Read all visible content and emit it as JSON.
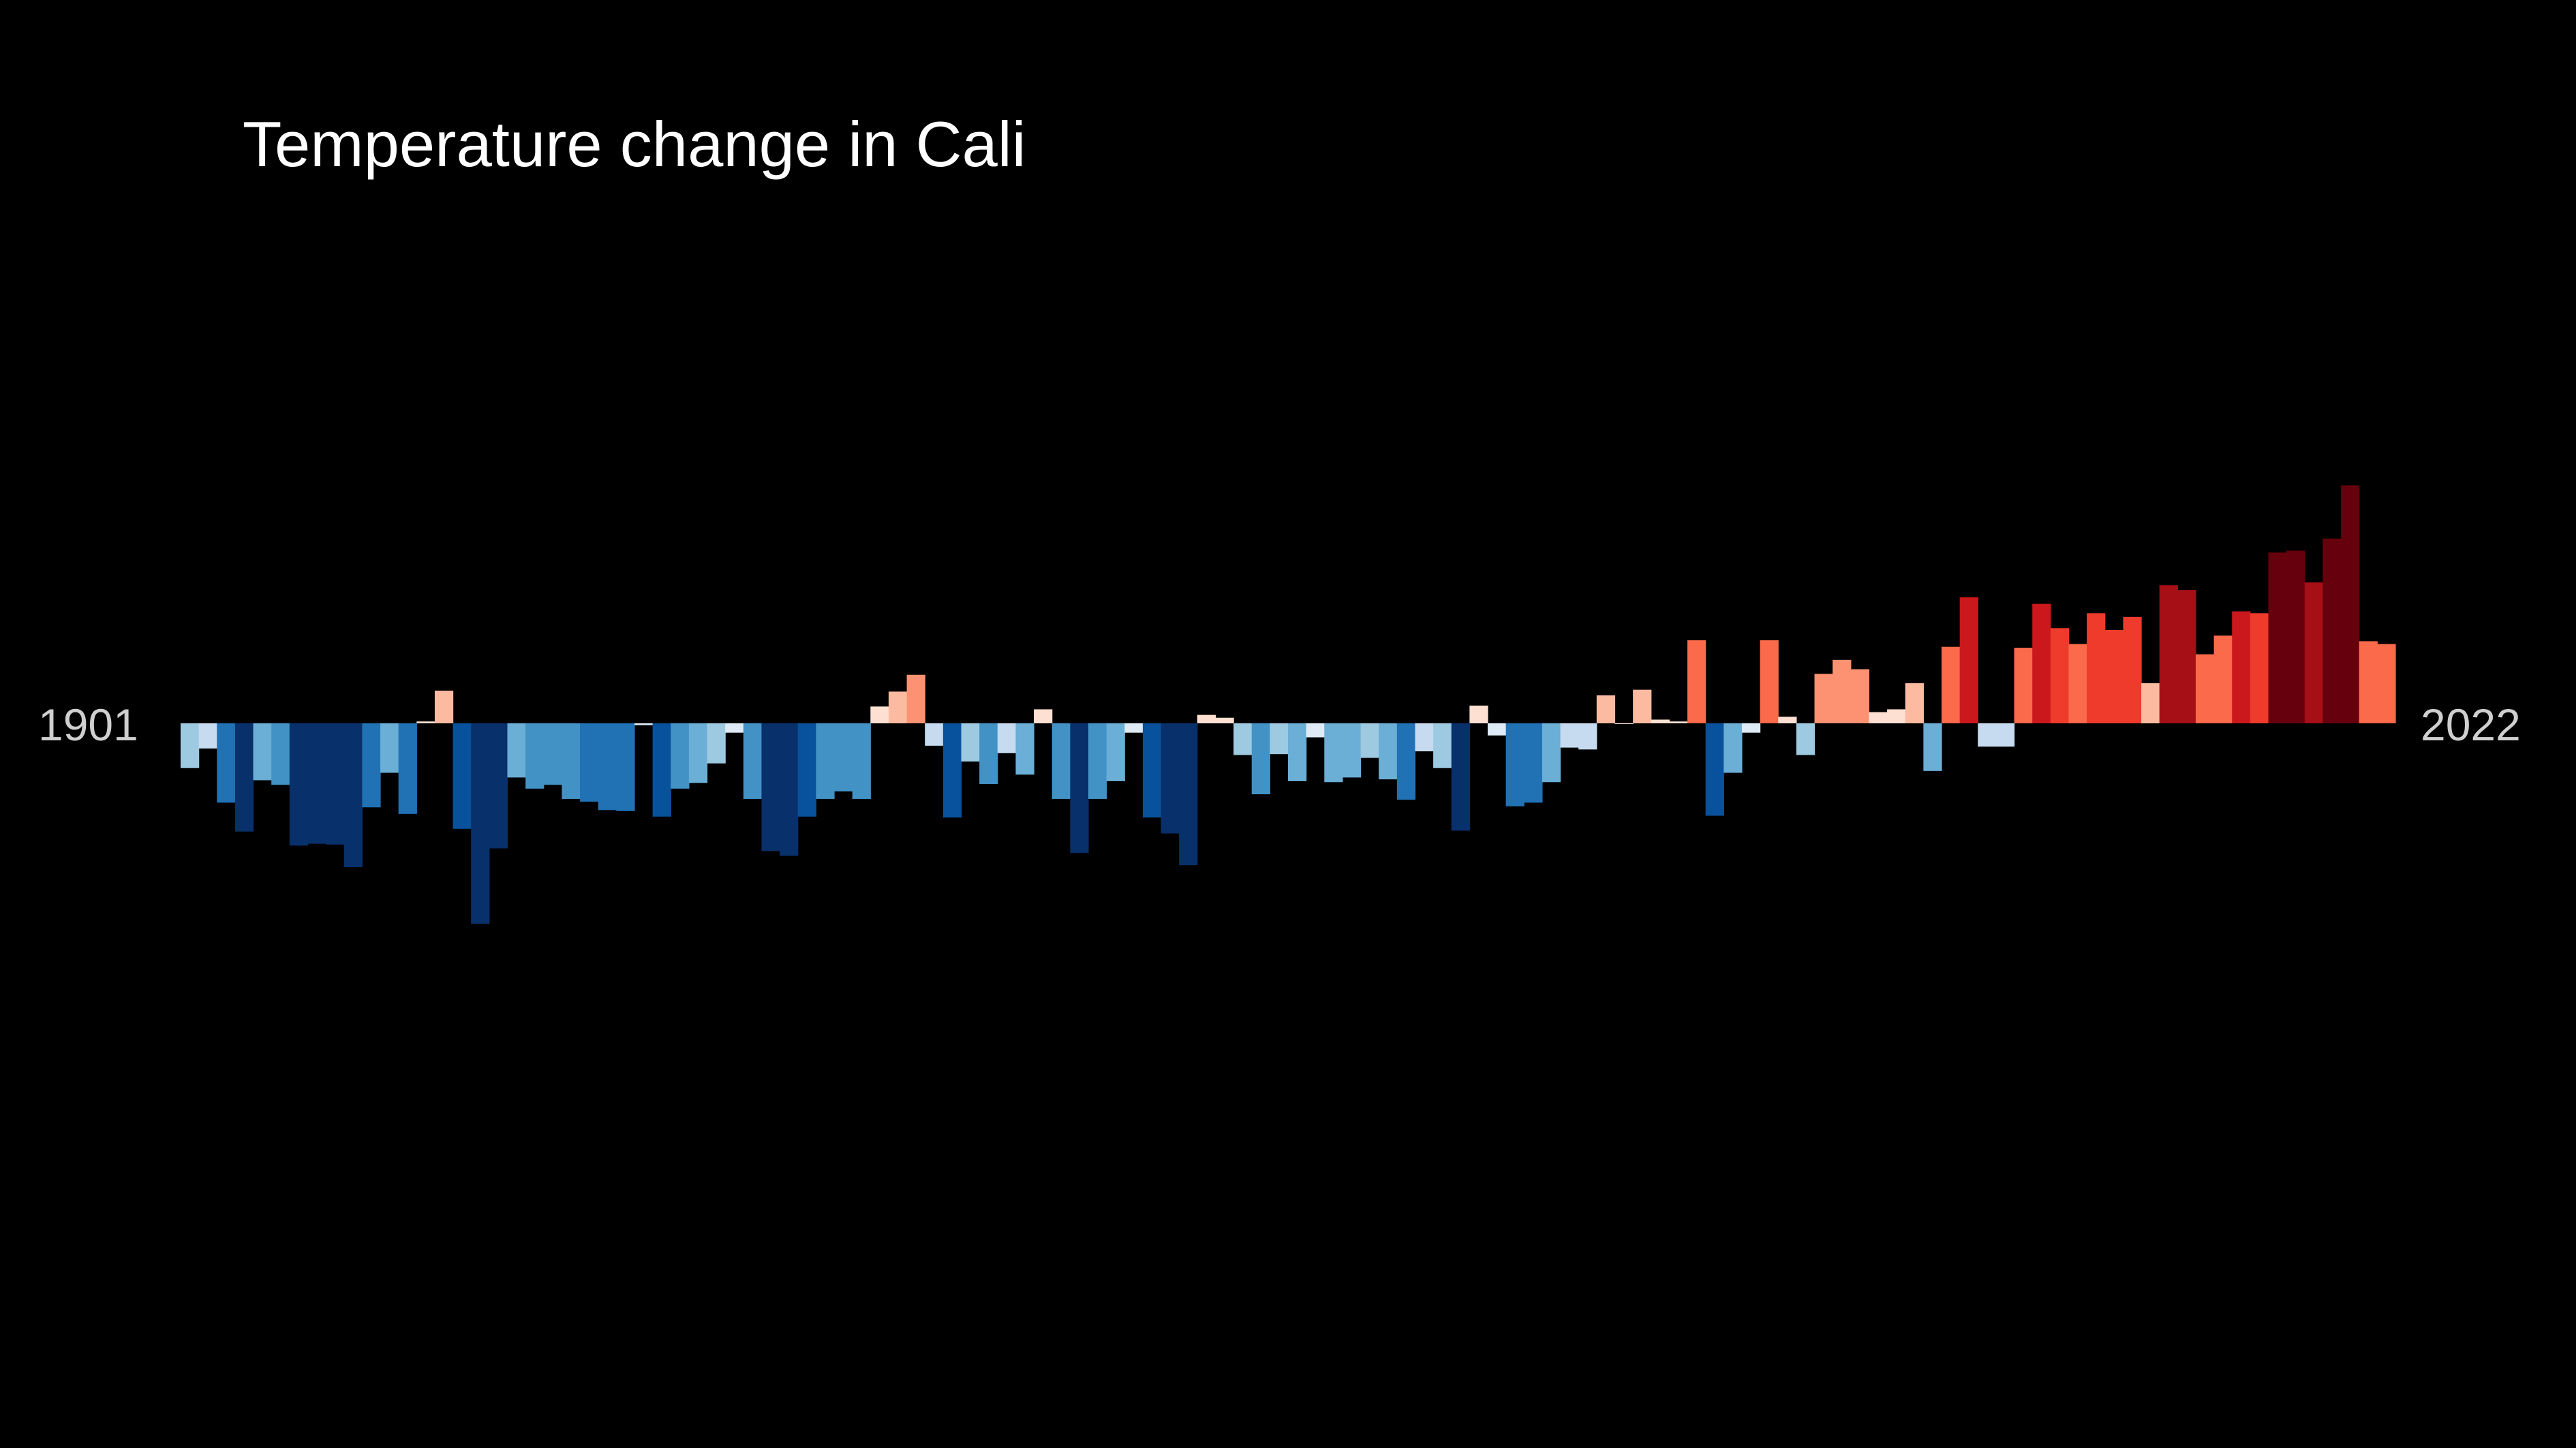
{
  "chart_data": {
    "type": "bar",
    "title": "Temperature change in Cali",
    "start_year_label": "1901",
    "end_year_label": "2022",
    "x_start": 1901,
    "x_end": 2022,
    "ylim": [
      -2.2,
      2.6
    ],
    "color_scale": {
      "neg_max": -1.3,
      "pos_max": 1.9,
      "blues": [
        "#deebf7",
        "#c6dbef",
        "#9ecae1",
        "#6baed6",
        "#4292c6",
        "#2171b5",
        "#08519c",
        "#08306b"
      ],
      "reds": [
        "#fee0d2",
        "#fcbba1",
        "#fc9272",
        "#fb6a4a",
        "#ef3b2c",
        "#cb181d",
        "#a50f15",
        "#67000d"
      ]
    },
    "values": [
      -0.48,
      -0.27,
      -0.85,
      -1.16,
      -0.61,
      -0.66,
      -1.31,
      -1.29,
      -1.3,
      -1.54,
      -0.9,
      -0.53,
      -0.97,
      0.02,
      0.35,
      -1.13,
      -2.15,
      -1.34,
      -0.58,
      -0.7,
      -0.66,
      -0.81,
      -0.84,
      -0.93,
      -0.94,
      -0.02,
      -1.0,
      -0.7,
      -0.64,
      -0.43,
      -0.1,
      -0.81,
      -1.37,
      -1.42,
      -1.0,
      -0.81,
      -0.73,
      -0.81,
      0.18,
      0.34,
      0.52,
      -0.24,
      -1.01,
      -0.41,
      -0.65,
      -0.32,
      -0.55,
      0.15,
      -0.81,
      -1.39,
      -0.81,
      -0.62,
      -0.1,
      -1.01,
      -1.18,
      -1.52,
      0.09,
      0.06,
      -0.34,
      -0.76,
      -0.33,
      -0.62,
      -0.15,
      -0.63,
      -0.58,
      -0.37,
      -0.6,
      -0.82,
      -0.3,
      -0.48,
      -1.15,
      0.19,
      -0.13,
      -0.89,
      -0.85,
      -0.63,
      -0.26,
      -0.28,
      0.3,
      0.0,
      0.36,
      0.04,
      0.02,
      0.89,
      -0.99,
      -0.53,
      -0.1,
      0.89,
      0.07,
      -0.34,
      0.53,
      0.68,
      0.58,
      0.12,
      0.15,
      0.43,
      -0.51,
      0.82,
      1.35,
      -0.25,
      -0.25,
      0.81,
      1.28,
      1.02,
      0.85,
      1.18,
      1.0,
      1.14,
      0.43,
      1.48,
      1.43,
      0.74,
      0.94,
      1.2,
      1.18,
      1.83,
      1.85,
      1.51,
      1.98,
      2.55,
      0.88,
      0.85
    ]
  }
}
